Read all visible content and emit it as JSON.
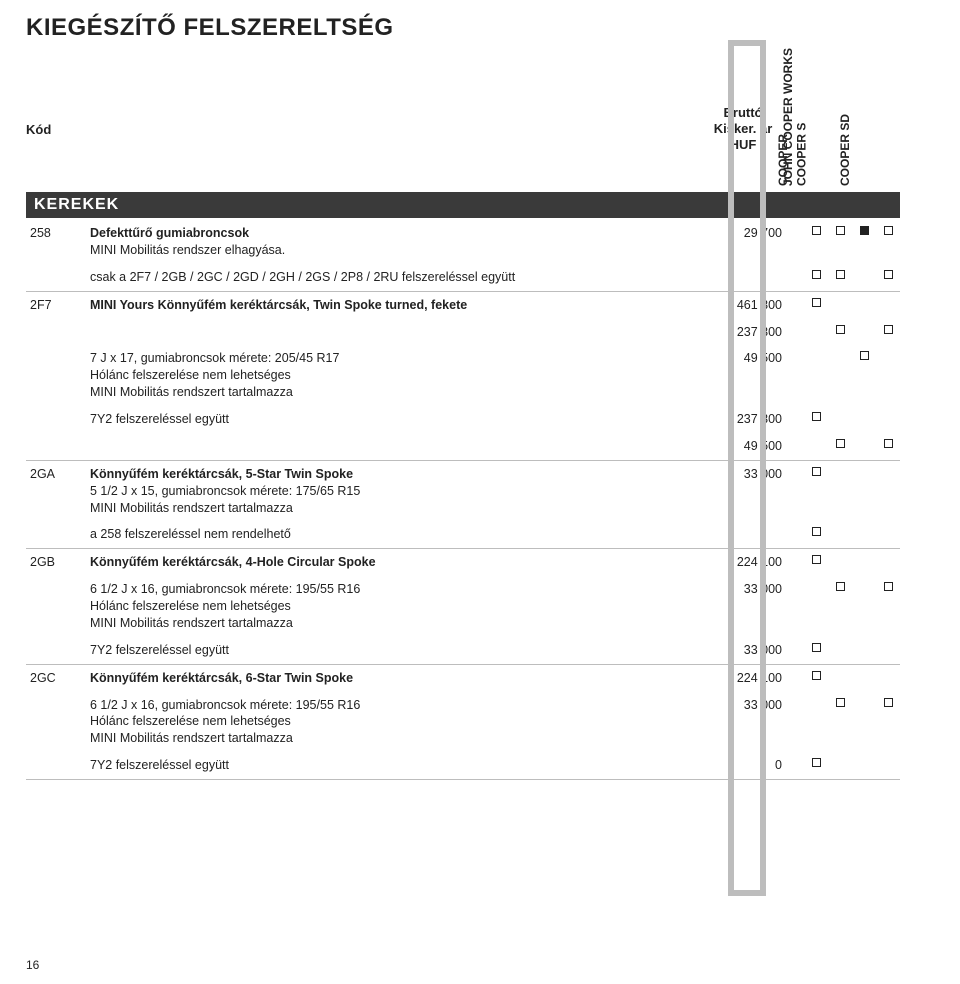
{
  "title": "KIEGÉSZÍTŐ FELSZERELTSÉG",
  "headers": {
    "code": "Kód",
    "price": "Bruttó\nKisker. ár\nHUF",
    "cols": [
      "COOPER",
      "COOPER S",
      "JOHN COOPER WORKS",
      "COOPER SD"
    ]
  },
  "section": "KEREKEK",
  "rows": [
    {
      "code": "258",
      "desc_bold": "Defekttűrő gumiabroncsok",
      "desc_lines": [
        "MINI Mobilitás rendszer elhagyása."
      ],
      "price": "29 700",
      "marks": [
        "box",
        "box",
        "fill",
        "box"
      ],
      "border": false
    },
    {
      "code": "",
      "desc_bold": "",
      "desc_lines": [
        "csak a 2F7 / 2GB / 2GC / 2GD / 2GH / 2GS / 2P8 / 2RU felszereléssel együtt"
      ],
      "price": "",
      "marks": [
        "box",
        "box",
        "",
        "box"
      ],
      "border": true
    },
    {
      "code": "2F7",
      "desc_bold": "MINI Yours Könnyűfém keréktárcsák, Twin Spoke turned, fekete",
      "desc_lines": [],
      "price": "461 300",
      "marks": [
        "box",
        "",
        "",
        ""
      ],
      "border": false
    },
    {
      "code": "",
      "desc_bold": "",
      "desc_lines": [],
      "price": "237 300",
      "marks": [
        "",
        "box",
        "",
        "box"
      ],
      "border": false
    },
    {
      "code": "",
      "desc_bold": "",
      "desc_lines": [
        "7 J x 17, gumiabroncsok mérete: 205/45 R17",
        "Hólánc felszerelése nem lehetséges",
        "MINI Mobilitás rendszert tartalmazza"
      ],
      "price": "49 500",
      "marks": [
        "",
        "",
        "box",
        ""
      ],
      "border": false
    },
    {
      "code": "",
      "desc_bold": "",
      "desc_lines": [
        "7Y2 felszereléssel együtt"
      ],
      "price": "237 300",
      "marks": [
        "box",
        "",
        "",
        ""
      ],
      "border": false
    },
    {
      "code": "",
      "desc_bold": "",
      "desc_lines": [],
      "price": "49 500",
      "marks": [
        "",
        "box",
        "",
        "box"
      ],
      "border": true
    },
    {
      "code": "2GA",
      "desc_bold": "Könnyűfém keréktárcsák, 5-Star Twin Spoke",
      "desc_lines": [
        "5 1/2 J x 15, gumiabroncsok mérete: 175/65 R15",
        "MINI Mobilitás rendszert tartalmazza"
      ],
      "price": "33 000",
      "marks": [
        "box",
        "",
        "",
        ""
      ],
      "border": false
    },
    {
      "code": "",
      "desc_bold": "",
      "desc_lines": [
        "a 258 felszereléssel nem rendelhető"
      ],
      "price": "",
      "marks": [
        "box",
        "",
        "",
        ""
      ],
      "border": true
    },
    {
      "code": "2GB",
      "desc_bold": "Könnyűfém keréktárcsák, 4-Hole Circular Spoke",
      "desc_lines": [],
      "price": "224 100",
      "marks": [
        "box",
        "",
        "",
        ""
      ],
      "border": false
    },
    {
      "code": "",
      "desc_bold": "",
      "desc_lines": [
        "6 1/2 J x 16, gumiabroncsok mérete: 195/55 R16",
        "Hólánc felszerelése nem lehetséges",
        "MINI Mobilitás rendszert tartalmazza"
      ],
      "price": "33 000",
      "marks": [
        "",
        "box",
        "",
        "box"
      ],
      "border": false
    },
    {
      "code": "",
      "desc_bold": "",
      "desc_lines": [
        "7Y2 felszereléssel együtt"
      ],
      "price": "33 000",
      "marks": [
        "box",
        "",
        "",
        ""
      ],
      "border": true
    },
    {
      "code": "2GC",
      "desc_bold": "Könnyűfém keréktárcsák, 6-Star Twin Spoke",
      "desc_lines": [],
      "price": "224 100",
      "marks": [
        "box",
        "",
        "",
        ""
      ],
      "border": false
    },
    {
      "code": "",
      "desc_bold": "",
      "desc_lines": [
        "6 1/2 J x 16, gumiabroncsok mérete: 195/55 R16",
        "Hólánc felszerelése nem lehetséges",
        "MINI Mobilitás rendszert tartalmazza"
      ],
      "price": "33 000",
      "marks": [
        "",
        "box",
        "",
        "box"
      ],
      "border": false
    },
    {
      "code": "",
      "desc_bold": "",
      "desc_lines": [
        "7Y2 felszereléssel együtt"
      ],
      "price": "0",
      "marks": [
        "box",
        "",
        "",
        ""
      ],
      "border": true
    }
  ],
  "page_number": "16",
  "colors": {
    "section_bg": "#3a3a3a",
    "frame": "#bdbdbd",
    "border": "#bdbdbd",
    "text": "#222222"
  }
}
